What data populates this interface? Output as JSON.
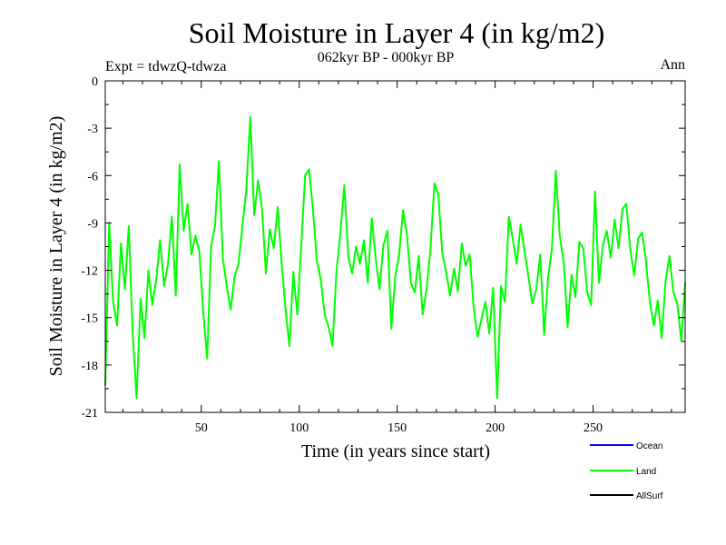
{
  "chart_data": {
    "type": "line",
    "title": "Soil Moisture in Layer 4 (in kg/m2)",
    "subtitle": "062kyr BP - 000kyr BP",
    "expt_label": "Expt = tdwzQ-tdwza",
    "season_label": "Ann",
    "xlabel": "Time (in years since start)",
    "ylabel": "Soil Moisture in Layer 4 (in kg/m2)",
    "xlim": [
      1,
      297
    ],
    "ylim": [
      -21,
      0
    ],
    "x_ticks": [
      50,
      100,
      150,
      200,
      250
    ],
    "y_ticks": [
      0,
      -3,
      -6,
      -9,
      -12,
      -15,
      -18,
      -21
    ],
    "x_tick_labels": [
      "50",
      "100",
      "150",
      "200",
      "250"
    ],
    "y_tick_labels": [
      "0",
      "-3",
      "-6",
      "-9",
      "-12",
      "-15",
      "-18",
      "-21"
    ],
    "grid": false,
    "legend": [
      {
        "name": "Ocean",
        "color": "#0000ff"
      },
      {
        "name": "Land",
        "color": "#00ff00"
      },
      {
        "name": "AllSurf",
        "color": "#000000"
      }
    ],
    "series": [
      {
        "name": "Land",
        "color": "#00ff00",
        "x": [
          1,
          3,
          5,
          7,
          9,
          11,
          13,
          15,
          17,
          19,
          21,
          23,
          25,
          27,
          29,
          31,
          33,
          35,
          37,
          39,
          41,
          43,
          45,
          47,
          49,
          51,
          53,
          55,
          57,
          59,
          61,
          63,
          65,
          67,
          69,
          71,
          73,
          75,
          77,
          79,
          81,
          83,
          85,
          87,
          89,
          91,
          93,
          95,
          97,
          99,
          101,
          103,
          105,
          107,
          109,
          111,
          113,
          115,
          117,
          119,
          121,
          123,
          125,
          127,
          129,
          131,
          133,
          135,
          137,
          139,
          141,
          143,
          145,
          147,
          149,
          151,
          153,
          155,
          157,
          159,
          161,
          163,
          165,
          167,
          169,
          171,
          173,
          175,
          177,
          179,
          181,
          183,
          185,
          187,
          189,
          191,
          193,
          195,
          197,
          199,
          201,
          203,
          205,
          207,
          209,
          211,
          213,
          215,
          217,
          219,
          221,
          223,
          225,
          227,
          229,
          231,
          233,
          235,
          237,
          239,
          241,
          243,
          245,
          247,
          249,
          251,
          253,
          255,
          257,
          259,
          261,
          263,
          265,
          267,
          269,
          271,
          273,
          275,
          277,
          279,
          281,
          283,
          285,
          287,
          289,
          291,
          293,
          295,
          297
        ],
        "y": [
          -19.3,
          -9.0,
          -14.0,
          -15.5,
          -10.3,
          -13.2,
          -9.2,
          -16.0,
          -20.1,
          -13.8,
          -16.3,
          -12.0,
          -14.2,
          -12.6,
          -10.1,
          -13.0,
          -11.6,
          -8.6,
          -13.6,
          -5.3,
          -9.5,
          -7.8,
          -11.0,
          -9.8,
          -10.8,
          -14.6,
          -17.6,
          -10.5,
          -9.2,
          -5.1,
          -11.2,
          -13.0,
          -14.5,
          -12.4,
          -11.6,
          -9.2,
          -6.9,
          -2.3,
          -8.5,
          -6.3,
          -8.1,
          -12.2,
          -9.4,
          -10.6,
          -8.0,
          -11.5,
          -14.4,
          -16.8,
          -12.1,
          -14.8,
          -10.5,
          -6.0,
          -5.6,
          -8.1,
          -11.4,
          -12.6,
          -14.8,
          -15.6,
          -16.8,
          -12.1,
          -9.6,
          -6.6,
          -11.1,
          -12.2,
          -10.5,
          -11.6,
          -10.1,
          -12.8,
          -8.7,
          -11.2,
          -13.2,
          -10.4,
          -9.5,
          -15.7,
          -12.4,
          -11.0,
          -8.2,
          -9.8,
          -12.8,
          -13.4,
          -11.1,
          -14.8,
          -13.2,
          -10.6,
          -6.5,
          -7.2,
          -10.9,
          -12.1,
          -13.6,
          -11.9,
          -13.3,
          -10.3,
          -11.7,
          -11.0,
          -14.3,
          -16.2,
          -15.1,
          -14.0,
          -16.0,
          -13.1,
          -20.1,
          -13.0,
          -14.0,
          -8.6,
          -10.0,
          -11.6,
          -9.1,
          -10.8,
          -12.4,
          -14.1,
          -13.2,
          -11.0,
          -16.1,
          -12.5,
          -10.6,
          -5.7,
          -9.8,
          -11.5,
          -15.6,
          -12.3,
          -13.7,
          -10.2,
          -10.6,
          -13.4,
          -14.2,
          -7.0,
          -12.8,
          -10.4,
          -9.5,
          -11.2,
          -8.8,
          -10.6,
          -8.1,
          -7.8,
          -10.7,
          -12.3,
          -10.0,
          -9.6,
          -11.4,
          -14.0,
          -15.5,
          -13.9,
          -16.3,
          -12.7,
          -11.1,
          -13.4,
          -14.1,
          -16.5,
          -12.8
        ]
      }
    ]
  }
}
